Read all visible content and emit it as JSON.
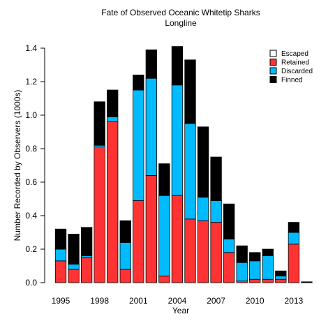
{
  "chart_data": {
    "type": "bar",
    "stacked": true,
    "title": "Fate of Observed Oceanic Whitetip Sharks",
    "subtitle": "Longline",
    "xlabel": "Year",
    "ylabel": "Number Recorded by Observers (1000s)",
    "ylim": [
      0,
      1.4
    ],
    "yticks": [
      "0.0",
      "0.2",
      "0.4",
      "0.6",
      "0.8",
      "1.0",
      "1.2",
      "1.4"
    ],
    "x": [
      1995,
      1996,
      1997,
      1998,
      1999,
      2000,
      2001,
      2002,
      2003,
      2004,
      2005,
      2006,
      2007,
      2008,
      2009,
      2010,
      2011,
      2012,
      2013,
      2014
    ],
    "xtick_labels": [
      {
        "year": 1995,
        "label": "1995"
      },
      {
        "year": 1998,
        "label": "1998"
      },
      {
        "year": 2001,
        "label": "2001"
      },
      {
        "year": 2004,
        "label": "2004"
      },
      {
        "year": 2007,
        "label": "2007"
      },
      {
        "year": 2010,
        "label": "2010"
      },
      {
        "year": 2013,
        "label": "2013"
      }
    ],
    "grid": false,
    "legend_position": "top-right",
    "series": [
      {
        "name": "Escaped",
        "color": "#ffffff",
        "values": [
          0,
          0,
          0,
          0,
          0,
          0,
          0,
          0,
          0,
          0,
          0,
          0,
          0,
          0,
          0,
          0,
          0,
          0,
          0,
          0
        ]
      },
      {
        "name": "Retained",
        "color": "#ff3333",
        "values": [
          0.13,
          0.08,
          0.15,
          0.81,
          0.96,
          0.08,
          0.49,
          0.64,
          0.04,
          0.52,
          0.38,
          0.37,
          0.36,
          0.18,
          0.01,
          0.02,
          0.02,
          0.02,
          0.23,
          0
        ]
      },
      {
        "name": "Discarded",
        "color": "#00bbff",
        "values": [
          0.07,
          0.03,
          0.01,
          0.01,
          0.03,
          0.16,
          0.66,
          0.58,
          0.48,
          0.66,
          0.57,
          0.14,
          0.13,
          0.08,
          0.11,
          0.11,
          0.14,
          0.02,
          0.07,
          0
        ]
      },
      {
        "name": "Finned",
        "color": "#000000",
        "values": [
          0.12,
          0.18,
          0.17,
          0.26,
          0.16,
          0.13,
          0.09,
          0.17,
          0.19,
          0.23,
          0.38,
          0.42,
          0.26,
          0.21,
          0.1,
          0.05,
          0.04,
          0.03,
          0.06,
          0.005
        ]
      }
    ]
  }
}
